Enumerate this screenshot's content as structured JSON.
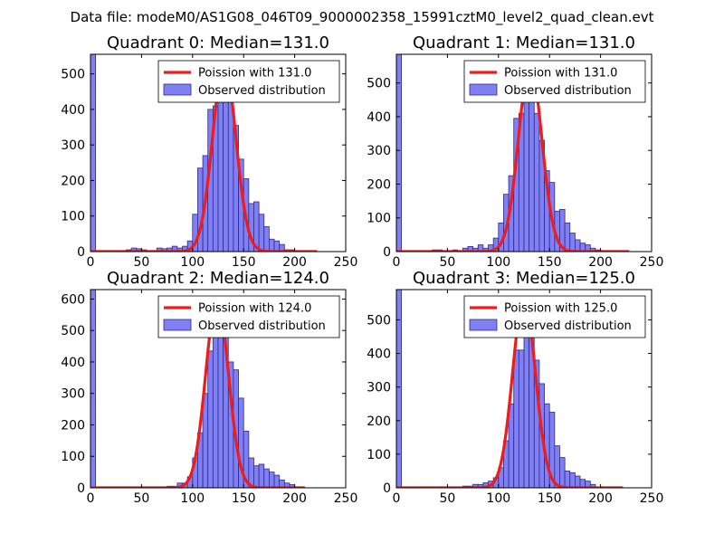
{
  "figure_title": "Data file: modeM0/AS1G08_046T09_9000002358_15991cztM0_level2_quad_clean.evt",
  "colors": {
    "bar_fill": "#8080f4",
    "bar_edge": "#2b2b8a",
    "poisson_line": "#ee1c1c",
    "axes": "#000000"
  },
  "chart_data": [
    {
      "type": "bar",
      "title": "Quadrant 0: Median=131.0",
      "xlim": [
        0,
        250
      ],
      "ylim": [
        0,
        555
      ],
      "xticks": [
        0,
        50,
        100,
        150,
        200,
        250
      ],
      "yticks": [
        0,
        100,
        200,
        300,
        400,
        500
      ],
      "bin_width": 5,
      "legend": [
        "Poission with 131.0",
        "Observed distribution"
      ],
      "legend_loc": "top-right",
      "bin_starts": [
        0,
        35,
        40,
        45,
        50,
        55,
        60,
        65,
        70,
        75,
        80,
        85,
        90,
        95,
        100,
        105,
        110,
        115,
        120,
        125,
        130,
        135,
        140,
        145,
        150,
        155,
        160,
        165,
        170,
        175,
        180,
        185,
        190,
        195
      ],
      "counts": [
        555,
        5,
        10,
        8,
        5,
        3,
        3,
        10,
        8,
        10,
        15,
        10,
        15,
        30,
        105,
        235,
        270,
        400,
        410,
        440,
        495,
        430,
        355,
        260,
        205,
        135,
        140,
        105,
        70,
        35,
        30,
        20,
        5,
        5
      ],
      "poisson": {
        "mean": 131.0,
        "peak": 530,
        "x_start": 0,
        "x_end": 222
      }
    },
    {
      "type": "bar",
      "title": "Quadrant 1: Median=131.0",
      "xlim": [
        0,
        250
      ],
      "ylim": [
        0,
        585
      ],
      "xticks": [
        0,
        50,
        100,
        150,
        200,
        250
      ],
      "yticks": [
        0,
        100,
        200,
        300,
        400,
        500
      ],
      "bin_width": 5,
      "legend": [
        "Poission with 131.0",
        "Observed distribution"
      ],
      "legend_loc": "top-right",
      "bin_starts": [
        0,
        35,
        40,
        50,
        55,
        60,
        65,
        70,
        75,
        80,
        85,
        90,
        95,
        100,
        105,
        110,
        115,
        120,
        125,
        130,
        135,
        140,
        145,
        150,
        155,
        160,
        165,
        170,
        175,
        180,
        185,
        190,
        195
      ],
      "counts": [
        585,
        5,
        5,
        3,
        5,
        3,
        10,
        15,
        10,
        20,
        10,
        20,
        40,
        85,
        170,
        225,
        395,
        410,
        470,
        475,
        410,
        330,
        240,
        205,
        120,
        125,
        85,
        55,
        35,
        25,
        20,
        10,
        5
      ],
      "poisson": {
        "mean": 131.0,
        "peak": 555,
        "x_start": 0,
        "x_end": 228
      }
    },
    {
      "type": "bar",
      "title": "Quadrant 2: Median=124.0",
      "xlim": [
        0,
        250
      ],
      "ylim": [
        0,
        630
      ],
      "xticks": [
        0,
        50,
        100,
        150,
        200,
        250
      ],
      "yticks": [
        0,
        100,
        200,
        300,
        400,
        500,
        600
      ],
      "bin_width": 5,
      "legend": [
        "Poission with 124.0",
        "Observed distribution"
      ],
      "legend_loc": "top-right",
      "bin_starts": [
        0,
        75,
        80,
        85,
        90,
        95,
        100,
        105,
        110,
        115,
        120,
        125,
        130,
        135,
        140,
        145,
        150,
        155,
        160,
        165,
        170,
        175,
        180,
        185,
        190,
        195
      ],
      "counts": [
        630,
        5,
        5,
        15,
        15,
        35,
        95,
        175,
        300,
        435,
        560,
        565,
        590,
        400,
        375,
        285,
        180,
        95,
        70,
        75,
        60,
        50,
        40,
        25,
        15,
        10
      ],
      "poisson": {
        "mean": 124.0,
        "peak": 600,
        "x_start": 0,
        "x_end": 210
      }
    },
    {
      "type": "bar",
      "title": "Quadrant 3: Median=125.0",
      "xlim": [
        0,
        250
      ],
      "ylim": [
        0,
        590
      ],
      "xticks": [
        0,
        50,
        100,
        150,
        200,
        250
      ],
      "yticks": [
        0,
        100,
        200,
        300,
        400,
        500
      ],
      "bin_width": 5,
      "legend": [
        "Poission with 125.0",
        "Observed distribution"
      ],
      "legend_loc": "top-right",
      "bin_starts": [
        0,
        65,
        70,
        75,
        80,
        85,
        90,
        95,
        100,
        105,
        110,
        115,
        120,
        125,
        130,
        135,
        140,
        145,
        150,
        155,
        160,
        165,
        170,
        175,
        180,
        185,
        190
      ],
      "counts": [
        590,
        5,
        5,
        10,
        10,
        15,
        20,
        30,
        60,
        140,
        250,
        410,
        410,
        560,
        560,
        380,
        310,
        250,
        225,
        125,
        90,
        50,
        45,
        35,
        25,
        20,
        10
      ],
      "poisson": {
        "mean": 125.0,
        "peak": 565,
        "x_start": 0,
        "x_end": 222
      }
    }
  ]
}
